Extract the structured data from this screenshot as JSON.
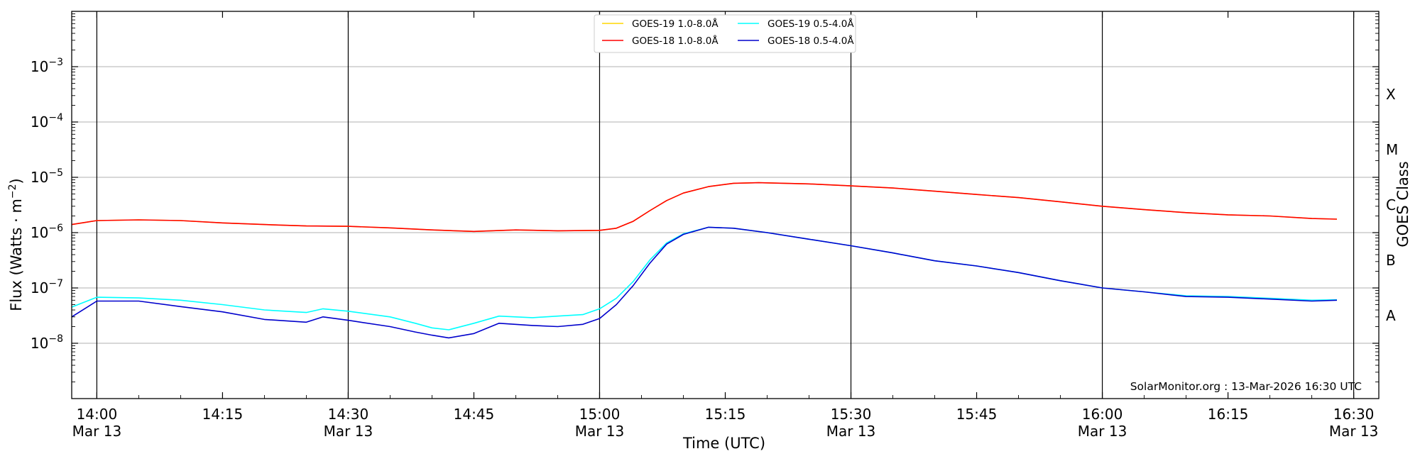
{
  "chart_data": {
    "type": "line",
    "ylabel": "Flux (Watts · m⁻²)",
    "xlabel": "Time (UTC)",
    "right_axis_label": "GOES Class",
    "y_scale": "log",
    "ylim": [
      1e-09,
      0.01
    ],
    "y_ticks": [
      {
        "value": 1e-08,
        "mant": "10",
        "exp": "−8"
      },
      {
        "value": 1e-07,
        "mant": "10",
        "exp": "−7"
      },
      {
        "value": 1e-06,
        "mant": "10",
        "exp": "−6"
      },
      {
        "value": 1e-05,
        "mant": "10",
        "exp": "−5"
      },
      {
        "value": 0.0001,
        "mant": "10",
        "exp": "−4"
      },
      {
        "value": 0.001,
        "mant": "10",
        "exp": "−3"
      }
    ],
    "goes_classes": [
      {
        "label": "A",
        "value": 3.16e-08
      },
      {
        "label": "B",
        "value": 3.16e-07
      },
      {
        "label": "C",
        "value": 3.16e-06
      },
      {
        "label": "M",
        "value": 3.16e-05
      },
      {
        "label": "X",
        "value": 0.000316
      }
    ],
    "xlim": [
      "13:57",
      "16:33"
    ],
    "x_ticks": [
      {
        "time": "14:00",
        "line1": "14:00",
        "line2": "Mar 13"
      },
      {
        "time": "14:15",
        "line1": "14:15",
        "line2": ""
      },
      {
        "time": "14:30",
        "line1": "14:30",
        "line2": "Mar 13"
      },
      {
        "time": "14:45",
        "line1": "14:45",
        "line2": ""
      },
      {
        "time": "15:00",
        "line1": "15:00",
        "line2": "Mar 13"
      },
      {
        "time": "15:15",
        "line1": "15:15",
        "line2": ""
      },
      {
        "time": "15:30",
        "line1": "15:30",
        "line2": "Mar 13"
      },
      {
        "time": "15:45",
        "line1": "15:45",
        "line2": ""
      },
      {
        "time": "16:00",
        "line1": "16:00",
        "line2": "Mar 13"
      },
      {
        "time": "16:15",
        "line1": "16:15",
        "line2": ""
      },
      {
        "time": "16:30",
        "line1": "16:30",
        "line2": "Mar 13"
      }
    ],
    "vertical_lines": [
      "14:00",
      "14:30",
      "15:00",
      "15:30",
      "16:00",
      "16:30"
    ],
    "grid": "horizontal",
    "legend": {
      "position": "top-center",
      "entries": [
        {
          "label": "GOES-19 1.0-8.0Å",
          "color": "#FFD700"
        },
        {
          "label": "GOES-18 1.0-8.0Å",
          "color": "#FF0000"
        },
        {
          "label": "GOES-19 0.5-4.0Å",
          "color": "#00FFFF"
        },
        {
          "label": "GOES-18 0.5-4.0Å",
          "color": "#0000CC"
        }
      ]
    },
    "credit": "SolarMonitor.org : 13-Mar-2026 16:30 UTC",
    "series": [
      {
        "name": "GOES-19 1.0-8.0Å",
        "color": "#FFD700",
        "points": [
          [
            "13:57",
            1.4e-06
          ],
          [
            "14:00",
            1.65e-06
          ],
          [
            "14:05",
            1.7e-06
          ],
          [
            "14:10",
            1.65e-06
          ],
          [
            "14:15",
            1.5e-06
          ],
          [
            "14:20",
            1.4e-06
          ],
          [
            "14:25",
            1.32e-06
          ],
          [
            "14:30",
            1.3e-06
          ],
          [
            "14:35",
            1.22e-06
          ],
          [
            "14:40",
            1.12e-06
          ],
          [
            "14:45",
            1.05e-06
          ],
          [
            "14:50",
            1.12e-06
          ],
          [
            "14:55",
            1.08e-06
          ],
          [
            "15:00",
            1.1e-06
          ],
          [
            "15:02",
            1.2e-06
          ],
          [
            "15:04",
            1.6e-06
          ],
          [
            "15:06",
            2.5e-06
          ],
          [
            "15:08",
            3.8e-06
          ],
          [
            "15:10",
            5.2e-06
          ],
          [
            "15:13",
            6.8e-06
          ],
          [
            "15:16",
            7.8e-06
          ],
          [
            "15:19",
            8e-06
          ],
          [
            "15:25",
            7.6e-06
          ],
          [
            "15:30",
            7e-06
          ],
          [
            "15:35",
            6.4e-06
          ],
          [
            "15:40",
            5.6e-06
          ],
          [
            "15:45",
            4.9e-06
          ],
          [
            "15:50",
            4.3e-06
          ],
          [
            "15:55",
            3.6e-06
          ],
          [
            "16:00",
            3e-06
          ],
          [
            "16:05",
            2.6e-06
          ],
          [
            "16:10",
            2.3e-06
          ],
          [
            "16:15",
            2.1e-06
          ],
          [
            "16:20",
            2e-06
          ],
          [
            "16:25",
            1.8e-06
          ],
          [
            "16:28",
            1.75e-06
          ]
        ]
      },
      {
        "name": "GOES-18 1.0-8.0Å",
        "color": "#FF0000",
        "points": [
          [
            "13:57",
            1.4e-06
          ],
          [
            "14:00",
            1.65e-06
          ],
          [
            "14:05",
            1.7e-06
          ],
          [
            "14:10",
            1.65e-06
          ],
          [
            "14:15",
            1.5e-06
          ],
          [
            "14:20",
            1.4e-06
          ],
          [
            "14:25",
            1.32e-06
          ],
          [
            "14:30",
            1.3e-06
          ],
          [
            "14:35",
            1.22e-06
          ],
          [
            "14:40",
            1.12e-06
          ],
          [
            "14:45",
            1.05e-06
          ],
          [
            "14:50",
            1.12e-06
          ],
          [
            "14:55",
            1.08e-06
          ],
          [
            "15:00",
            1.1e-06
          ],
          [
            "15:02",
            1.2e-06
          ],
          [
            "15:04",
            1.6e-06
          ],
          [
            "15:06",
            2.5e-06
          ],
          [
            "15:08",
            3.8e-06
          ],
          [
            "15:10",
            5.2e-06
          ],
          [
            "15:13",
            6.8e-06
          ],
          [
            "15:16",
            7.8e-06
          ],
          [
            "15:19",
            8e-06
          ],
          [
            "15:25",
            7.6e-06
          ],
          [
            "15:30",
            7e-06
          ],
          [
            "15:35",
            6.4e-06
          ],
          [
            "15:40",
            5.6e-06
          ],
          [
            "15:45",
            4.9e-06
          ],
          [
            "15:50",
            4.3e-06
          ],
          [
            "15:55",
            3.6e-06
          ],
          [
            "16:00",
            3e-06
          ],
          [
            "16:05",
            2.6e-06
          ],
          [
            "16:10",
            2.3e-06
          ],
          [
            "16:15",
            2.1e-06
          ],
          [
            "16:20",
            2e-06
          ],
          [
            "16:25",
            1.8e-06
          ],
          [
            "16:28",
            1.75e-06
          ]
        ]
      },
      {
        "name": "GOES-19 0.5-4.0Å",
        "color": "#00FFFF",
        "points": [
          [
            "13:57",
            4.5e-08
          ],
          [
            "14:00",
            6.8e-08
          ],
          [
            "14:05",
            6.6e-08
          ],
          [
            "14:10",
            6e-08
          ],
          [
            "14:15",
            5e-08
          ],
          [
            "14:20",
            4e-08
          ],
          [
            "14:25",
            3.6e-08
          ],
          [
            "14:27",
            4.2e-08
          ],
          [
            "14:30",
            3.8e-08
          ],
          [
            "14:35",
            3e-08
          ],
          [
            "14:38",
            2.3e-08
          ],
          [
            "14:40",
            1.9e-08
          ],
          [
            "14:42",
            1.75e-08
          ],
          [
            "14:45",
            2.3e-08
          ],
          [
            "14:48",
            3.1e-08
          ],
          [
            "14:52",
            2.9e-08
          ],
          [
            "14:55",
            3.1e-08
          ],
          [
            "14:58",
            3.3e-08
          ],
          [
            "15:00",
            4.2e-08
          ],
          [
            "15:02",
            6.5e-08
          ],
          [
            "15:04",
            1.3e-07
          ],
          [
            "15:06",
            3.2e-07
          ],
          [
            "15:08",
            6.5e-07
          ],
          [
            "15:10",
            9.5e-07
          ],
          [
            "15:13",
            1.25e-06
          ],
          [
            "15:16",
            1.2e-06
          ],
          [
            "15:20",
            1e-06
          ],
          [
            "15:25",
            7.6e-07
          ],
          [
            "15:30",
            5.8e-07
          ],
          [
            "15:35",
            4.3e-07
          ],
          [
            "15:40",
            3.1e-07
          ],
          [
            "15:45",
            2.5e-07
          ],
          [
            "15:50",
            1.9e-07
          ],
          [
            "15:55",
            1.35e-07
          ],
          [
            "16:00",
            1e-07
          ],
          [
            "16:05",
            8.5e-08
          ],
          [
            "16:10",
            7.2e-08
          ],
          [
            "16:15",
            7e-08
          ],
          [
            "16:20",
            6.5e-08
          ],
          [
            "16:25",
            6e-08
          ],
          [
            "16:28",
            6.1e-08
          ]
        ]
      },
      {
        "name": "GOES-18 0.5-4.0Å",
        "color": "#0000CC",
        "points": [
          [
            "13:57",
            3e-08
          ],
          [
            "14:00",
            5.8e-08
          ],
          [
            "14:05",
            5.8e-08
          ],
          [
            "14:10",
            4.6e-08
          ],
          [
            "14:15",
            3.7e-08
          ],
          [
            "14:20",
            2.7e-08
          ],
          [
            "14:25",
            2.4e-08
          ],
          [
            "14:27",
            3e-08
          ],
          [
            "14:30",
            2.6e-08
          ],
          [
            "14:35",
            2e-08
          ],
          [
            "14:38",
            1.6e-08
          ],
          [
            "14:40",
            1.4e-08
          ],
          [
            "14:42",
            1.25e-08
          ],
          [
            "14:45",
            1.5e-08
          ],
          [
            "14:48",
            2.3e-08
          ],
          [
            "14:52",
            2.1e-08
          ],
          [
            "14:55",
            2e-08
          ],
          [
            "14:58",
            2.2e-08
          ],
          [
            "15:00",
            2.8e-08
          ],
          [
            "15:02",
            5e-08
          ],
          [
            "15:04",
            1.1e-07
          ],
          [
            "15:06",
            2.8e-07
          ],
          [
            "15:08",
            6.2e-07
          ],
          [
            "15:10",
            9.3e-07
          ],
          [
            "15:13",
            1.25e-06
          ],
          [
            "15:16",
            1.2e-06
          ],
          [
            "15:20",
            1e-06
          ],
          [
            "15:25",
            7.6e-07
          ],
          [
            "15:30",
            5.8e-07
          ],
          [
            "15:35",
            4.3e-07
          ],
          [
            "15:40",
            3.1e-07
          ],
          [
            "15:45",
            2.5e-07
          ],
          [
            "15:50",
            1.9e-07
          ],
          [
            "15:55",
            1.35e-07
          ],
          [
            "16:00",
            1e-07
          ],
          [
            "16:05",
            8.5e-08
          ],
          [
            "16:10",
            7e-08
          ],
          [
            "16:15",
            6.8e-08
          ],
          [
            "16:20",
            6.3e-08
          ],
          [
            "16:25",
            5.8e-08
          ],
          [
            "16:28",
            6e-08
          ]
        ]
      }
    ]
  }
}
